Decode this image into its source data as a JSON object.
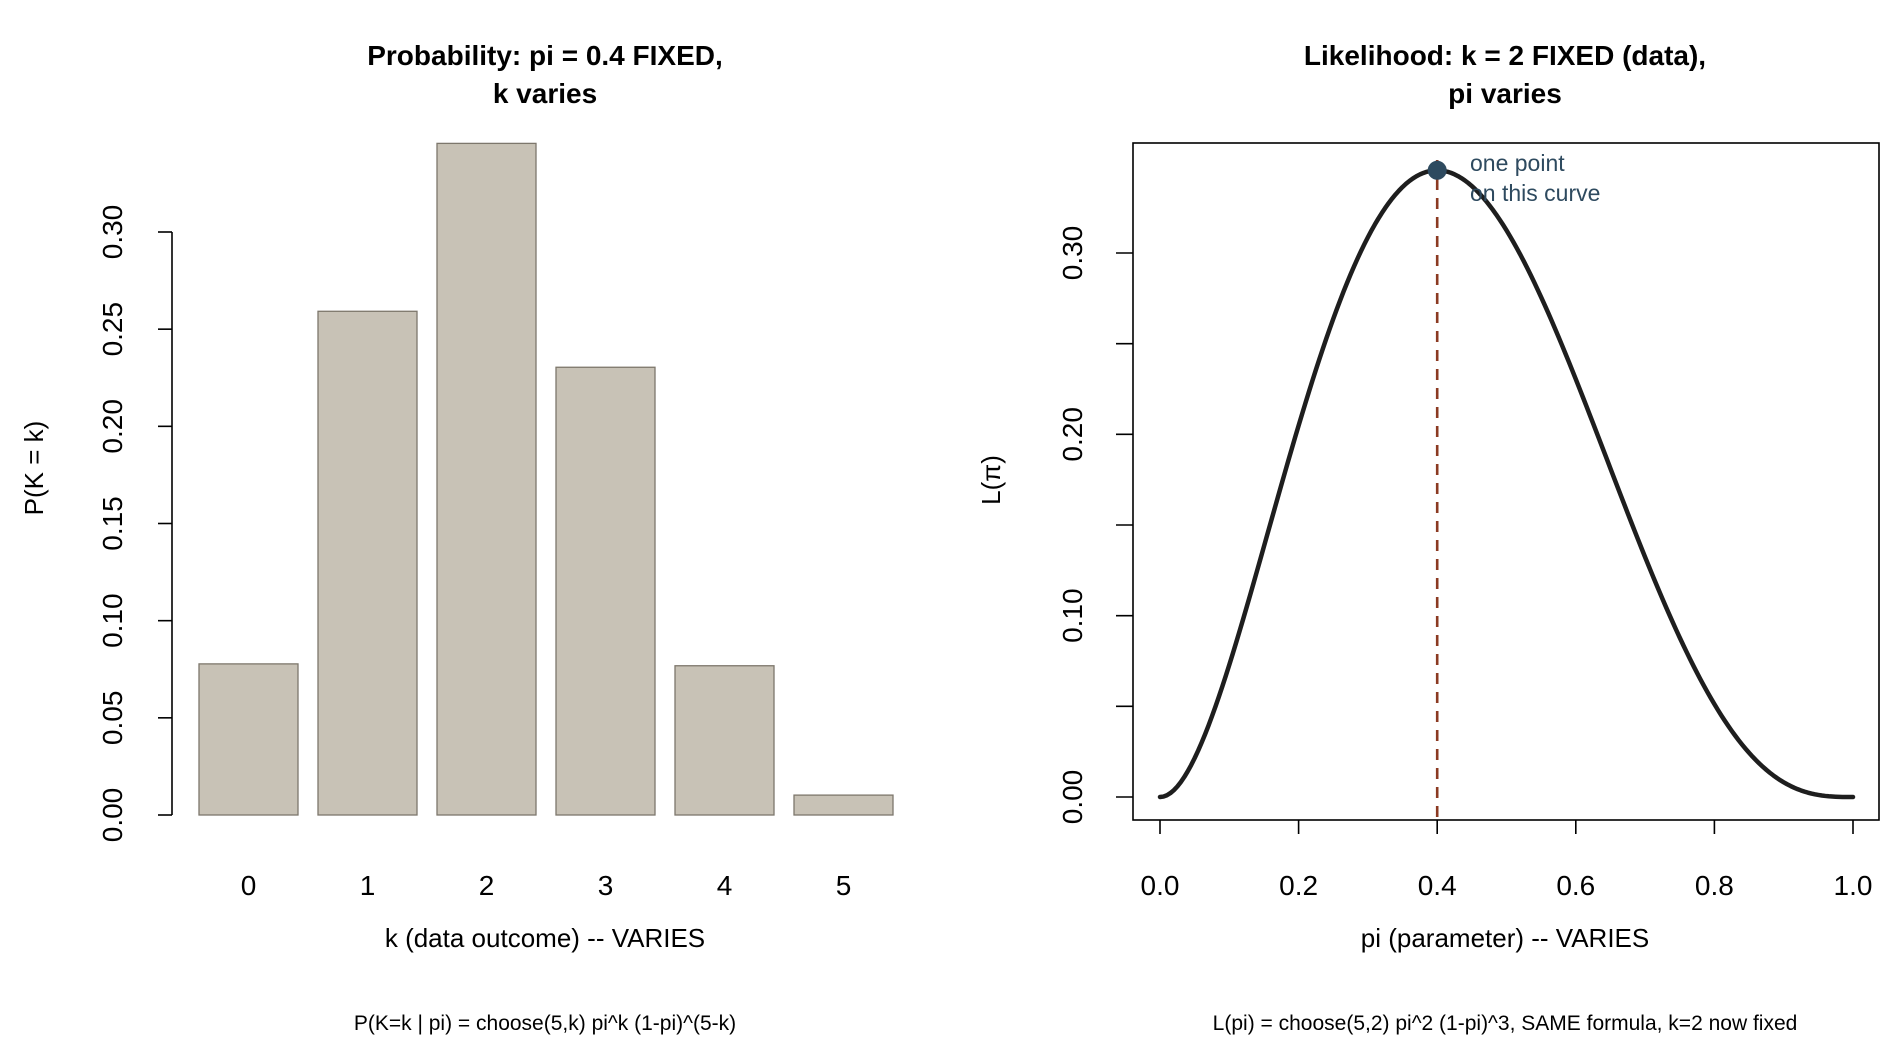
{
  "chart_data": [
    {
      "type": "bar",
      "title_lines": [
        "Probability: pi = 0.4 FIXED,",
        "k varies"
      ],
      "xlabel": "k (data outcome) -- VARIES",
      "ylabel": "P(K = k)",
      "footnote": "P(K=k | pi) = choose(5,k) pi^k (1-pi)^(5-k)",
      "categories": [
        "0",
        "1",
        "2",
        "3",
        "4",
        "5"
      ],
      "values": [
        0.07776,
        0.2592,
        0.3456,
        0.2304,
        0.0768,
        0.01024
      ],
      "ylim": [
        0,
        0.35
      ],
      "yticks": [
        0.0,
        0.05,
        0.1,
        0.15,
        0.2,
        0.25,
        0.3
      ],
      "ytick_labels": [
        "0.00",
        "0.05",
        "0.10",
        "0.15",
        "0.20",
        "0.25",
        "0.30"
      ],
      "bar_color": "#c8c2b6",
      "bar_border": "#7d776c",
      "grid": false
    },
    {
      "type": "line",
      "title_lines": [
        "Likelihood: k = 2 FIXED (data),",
        "pi varies"
      ],
      "xlabel": "pi (parameter) -- VARIES",
      "ylabel": "L(π)",
      "footnote": "L(pi) = choose(5,2) pi^2 (1-pi)^3, SAME formula, k=2 now fixed",
      "x": [
        0.0,
        0.05,
        0.1,
        0.15,
        0.2,
        0.25,
        0.3,
        0.35,
        0.4,
        0.45,
        0.5,
        0.55,
        0.6,
        0.65,
        0.7,
        0.75,
        0.8,
        0.85,
        0.9,
        0.95,
        1.0
      ],
      "y": [
        0.0,
        0.0214,
        0.0729,
        0.1382,
        0.2048,
        0.2637,
        0.3087,
        0.3364,
        0.3456,
        0.3369,
        0.3125,
        0.2757,
        0.2304,
        0.1811,
        0.1323,
        0.0879,
        0.0512,
        0.0244,
        0.0081,
        0.0012,
        0.0
      ],
      "xlim": [
        0,
        1
      ],
      "ylim": [
        0,
        0.35
      ],
      "xticks": [
        0.0,
        0.2,
        0.4,
        0.6,
        0.8,
        1.0
      ],
      "xtick_labels": [
        "0.0",
        "0.2",
        "0.4",
        "0.6",
        "0.8",
        "1.0"
      ],
      "yticks": [
        0.0,
        0.1,
        0.2,
        0.3
      ],
      "ytick_labels": [
        "0.00",
        "0.10",
        "0.20",
        "0.30"
      ],
      "yminor_ticks": [
        0.05,
        0.15,
        0.25
      ],
      "marker": {
        "x": 0.4,
        "y": 0.3456
      },
      "vline_x": 0.4,
      "annotation_lines": [
        "one point",
        "on this curve"
      ],
      "line_color": "#1e1e1e",
      "marker_color": "#2e4a5f",
      "vline_color": "#8b3a22",
      "grid": false
    }
  ]
}
